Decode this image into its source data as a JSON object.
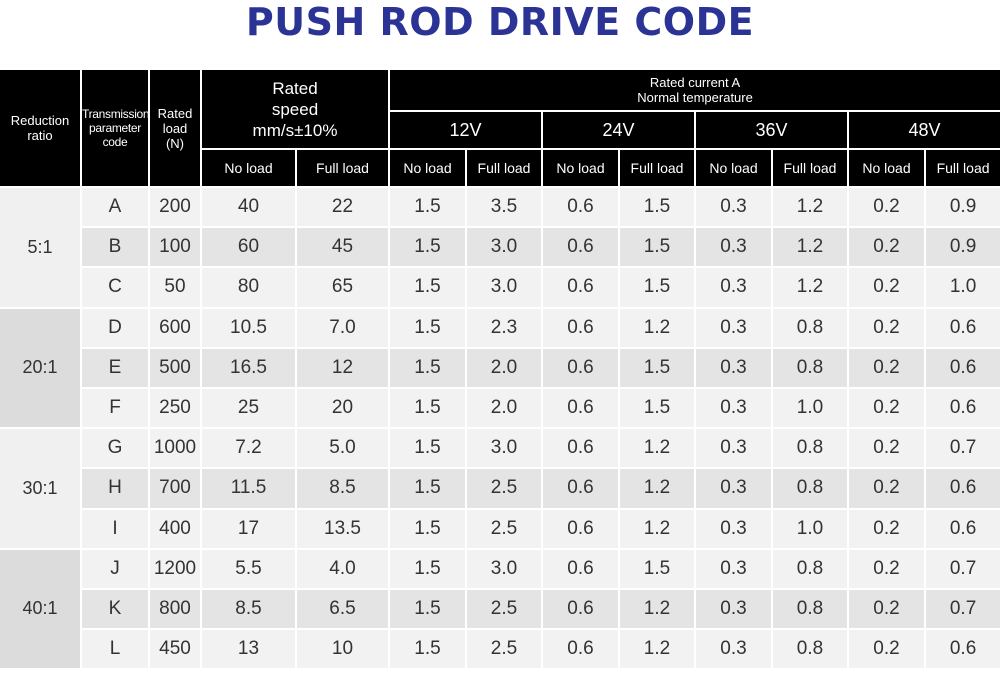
{
  "title": "PUSH ROD DRIVE CODE",
  "headers": {
    "reduction_ratio": "Reduction ratio",
    "transmission_code": "Transmission parameter code",
    "rated_load": "Rated load (N)",
    "rated_speed": "Rated speed mm/s±10%",
    "rated_current_line1": "Rated current  A",
    "rated_current_line2": "Normal temperature",
    "voltages": [
      "12V",
      "24V",
      "36V",
      "48V"
    ],
    "no_load": "No load",
    "full_load": "Full load"
  },
  "groups": [
    {
      "ratio": "5:1",
      "rows": [
        {
          "code": "A",
          "load": "200",
          "speed_no": "40",
          "speed_full": "22",
          "currents": [
            "1.5",
            "3.5",
            "0.6",
            "1.5",
            "0.3",
            "1.2",
            "0.2",
            "0.9"
          ]
        },
        {
          "code": "B",
          "load": "100",
          "speed_no": "60",
          "speed_full": "45",
          "currents": [
            "1.5",
            "3.0",
            "0.6",
            "1.5",
            "0.3",
            "1.2",
            "0.2",
            "0.9"
          ]
        },
        {
          "code": "C",
          "load": "50",
          "speed_no": "80",
          "speed_full": "65",
          "currents": [
            "1.5",
            "3.0",
            "0.6",
            "1.5",
            "0.3",
            "1.2",
            "0.2",
            "1.0"
          ]
        }
      ]
    },
    {
      "ratio": "20:1",
      "rows": [
        {
          "code": "D",
          "load": "600",
          "speed_no": "10.5",
          "speed_full": "7.0",
          "currents": [
            "1.5",
            "2.3",
            "0.6",
            "1.2",
            "0.3",
            "0.8",
            "0.2",
            "0.6"
          ]
        },
        {
          "code": "E",
          "load": "500",
          "speed_no": "16.5",
          "speed_full": "12",
          "currents": [
            "1.5",
            "2.0",
            "0.6",
            "1.5",
            "0.3",
            "0.8",
            "0.2",
            "0.6"
          ]
        },
        {
          "code": "F",
          "load": "250",
          "speed_no": "25",
          "speed_full": "20",
          "currents": [
            "1.5",
            "2.0",
            "0.6",
            "1.5",
            "0.3",
            "1.0",
            "0.2",
            "0.6"
          ]
        }
      ]
    },
    {
      "ratio": "30:1",
      "rows": [
        {
          "code": "G",
          "load": "1000",
          "speed_no": "7.2",
          "speed_full": "5.0",
          "currents": [
            "1.5",
            "3.0",
            "0.6",
            "1.2",
            "0.3",
            "0.8",
            "0.2",
            "0.7"
          ]
        },
        {
          "code": "H",
          "load": "700",
          "speed_no": "11.5",
          "speed_full": "8.5",
          "currents": [
            "1.5",
            "2.5",
            "0.6",
            "1.2",
            "0.3",
            "0.8",
            "0.2",
            "0.6"
          ]
        },
        {
          "code": "I",
          "load": "400",
          "speed_no": "17",
          "speed_full": "13.5",
          "currents": [
            "1.5",
            "2.5",
            "0.6",
            "1.2",
            "0.3",
            "1.0",
            "0.2",
            "0.6"
          ]
        }
      ]
    },
    {
      "ratio": "40:1",
      "rows": [
        {
          "code": "J",
          "load": "1200",
          "speed_no": "5.5",
          "speed_full": "4.0",
          "currents": [
            "1.5",
            "3.0",
            "0.6",
            "1.5",
            "0.3",
            "0.8",
            "0.2",
            "0.7"
          ]
        },
        {
          "code": "K",
          "load": "800",
          "speed_no": "8.5",
          "speed_full": "6.5",
          "currents": [
            "1.5",
            "2.5",
            "0.6",
            "1.2",
            "0.3",
            "0.8",
            "0.2",
            "0.7"
          ]
        },
        {
          "code": "L",
          "load": "450",
          "speed_no": "13",
          "speed_full": "10",
          "currents": [
            "1.5",
            "2.5",
            "0.6",
            "1.2",
            "0.3",
            "0.8",
            "0.2",
            "0.6"
          ]
        }
      ]
    }
  ],
  "colors": {
    "title": "#2b3394",
    "header_bg": "#000000",
    "header_text": "#ffffff",
    "row_light": "#f2f2f2",
    "row_dark": "#e4e4e4"
  }
}
